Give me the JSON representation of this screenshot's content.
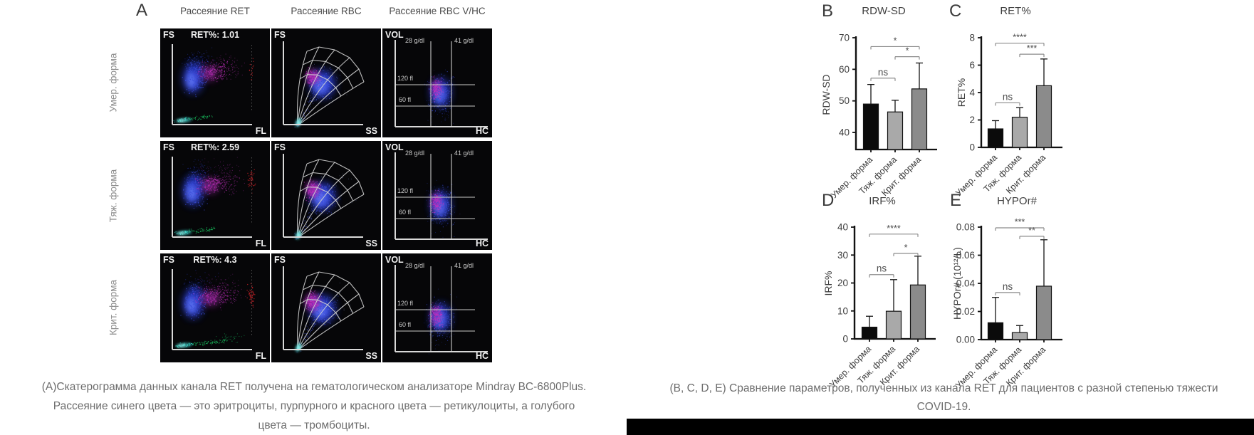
{
  "panelA": {
    "letter": "A",
    "column_headers": [
      "Рассеяние RET",
      "Рассеяние RBC",
      "Рассеяние RBC V/HC"
    ],
    "row_labels": [
      "Умер. форма",
      "Тяж. форма",
      "Крит. форма"
    ],
    "ret": {
      "ylabel": "FS",
      "xlabel": "FL",
      "values": [
        "RET%: 1.01",
        "RET%: 2.59",
        "RET%: 4.3"
      ]
    },
    "rbc": {
      "ylabel": "FS",
      "xlabel": "SS"
    },
    "vhc": {
      "ylabel": "VOL",
      "xlabel": "HC",
      "grid": {
        "v1": "28 g/dl",
        "v2": "41 g/dl",
        "h1": "120 fl",
        "h2": "60 fl"
      }
    }
  },
  "chart_data": [
    {
      "type": "bar",
      "letter": "B",
      "title": "RDW-SD",
      "xlabel": "",
      "ylabel": "RDW-SD",
      "categories": [
        "Умер. форма",
        "Тяж. форма",
        "Крит. форма"
      ],
      "values": [
        49,
        46.5,
        53.8
      ],
      "error_top": [
        55.2,
        50.2,
        62
      ],
      "yticks": [
        40,
        50,
        60,
        70
      ],
      "ylim": [
        34.6,
        70
      ],
      "tick_decimals": 0,
      "bar_colors": [
        "#0b0b0b",
        "#a9a9a9",
        "#8b8b8b"
      ],
      "grid": false,
      "legend": false,
      "significance": [
        {
          "groups": [
            0,
            1
          ],
          "label": "ns",
          "y": 57.2
        },
        {
          "groups": [
            1,
            2
          ],
          "label": "*",
          "y": 64
        },
        {
          "groups": [
            0,
            2
          ],
          "label": "*",
          "y": 67.2
        }
      ]
    },
    {
      "type": "bar",
      "letter": "C",
      "title": "RET%",
      "xlabel": "",
      "ylabel": "RET%",
      "categories": [
        "Умер. форма",
        "Тяж. форма",
        "Крит. форма"
      ],
      "values": [
        1.35,
        2.2,
        4.5
      ],
      "error_top": [
        1.95,
        2.9,
        6.45
      ],
      "yticks": [
        0,
        2,
        4,
        6,
        8
      ],
      "ylim": [
        0,
        8
      ],
      "tick_decimals": 0,
      "bar_colors": [
        "#0b0b0b",
        "#a9a9a9",
        "#8b8b8b"
      ],
      "grid": false,
      "legend": false,
      "significance": [
        {
          "groups": [
            0,
            1
          ],
          "label": "ns",
          "y": 3.25
        },
        {
          "groups": [
            1,
            2
          ],
          "label": "***",
          "y": 6.8
        },
        {
          "groups": [
            0,
            2
          ],
          "label": "****",
          "y": 7.6
        }
      ]
    },
    {
      "type": "bar",
      "letter": "D",
      "title": "IRF%",
      "xlabel": "",
      "ylabel": "IRF%",
      "categories": [
        "Умер. форма",
        "Тяж. форма",
        "Крит. форма"
      ],
      "values": [
        4.2,
        9.9,
        19.3
      ],
      "error_top": [
        8.1,
        21.2,
        29.6
      ],
      "yticks": [
        0,
        10,
        20,
        30,
        40
      ],
      "ylim": [
        0,
        40
      ],
      "tick_decimals": 0,
      "bar_colors": [
        "#0b0b0b",
        "#a9a9a9",
        "#8b8b8b"
      ],
      "grid": false,
      "legend": false,
      "significance": [
        {
          "groups": [
            0,
            1
          ],
          "label": "ns",
          "y": 23
        },
        {
          "groups": [
            1,
            2
          ],
          "label": "*",
          "y": 30.6
        },
        {
          "groups": [
            0,
            2
          ],
          "label": "****",
          "y": 37.5
        }
      ]
    },
    {
      "type": "bar",
      "letter": "E",
      "title": "HYPOr#",
      "xlabel": "",
      "ylabel": "HYPOr# (10¹²/L)",
      "categories": [
        "Умер. форма",
        "Тяж. форма",
        "Крит. форма"
      ],
      "values": [
        0.012,
        0.005,
        0.038
      ],
      "error_top": [
        0.03,
        0.01,
        0.071
      ],
      "yticks": [
        0,
        0.02,
        0.04,
        0.06,
        0.08
      ],
      "ylim": [
        0,
        0.08
      ],
      "tick_decimals": 2,
      "bar_colors": [
        "#0b0b0b",
        "#a9a9a9",
        "#8b8b8b"
      ],
      "grid": false,
      "legend": false,
      "significance": [
        {
          "groups": [
            0,
            1
          ],
          "label": "ns",
          "y": 0.0335
        },
        {
          "groups": [
            1,
            2
          ],
          "label": "**",
          "y": 0.0735
        },
        {
          "groups": [
            0,
            2
          ],
          "label": "***",
          "y": 0.0795
        }
      ]
    }
  ],
  "captions": {
    "left": {
      "lines": [
        "(А)Скатерограмма данных канала RET получена на гематологическом анализаторе Mindray BC-6800Plus.",
        "Рассеяние синего цвета — это эритроциты, пурпурного и красного цвета — ретикулоциты, а голубого",
        "цвета — тромбоциты."
      ]
    },
    "right": {
      "lines": [
        "(B, C, D, E) Сравнение параметров, полученных из канала RET для пациентов с разной степенью тяжести",
        "COVID-19."
      ]
    }
  }
}
